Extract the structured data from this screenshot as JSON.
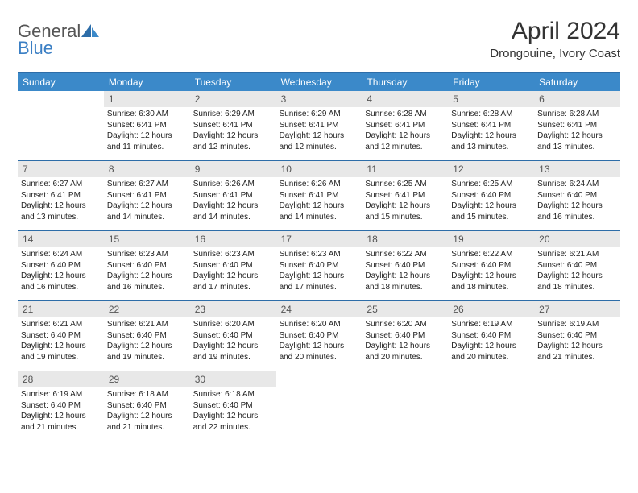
{
  "logo": {
    "text_top": "General",
    "text_bottom": "Blue"
  },
  "title": "April 2024",
  "location": "Drongouine, Ivory Coast",
  "weekdays": [
    "Sunday",
    "Monday",
    "Tuesday",
    "Wednesday",
    "Thursday",
    "Friday",
    "Saturday"
  ],
  "colors": {
    "header_bar": "#3b89c9",
    "border": "#2d6da8",
    "daynum_bg": "#e8e8e8",
    "logo_blue": "#3b7fc4"
  },
  "weeks": [
    [
      null,
      {
        "n": "1",
        "sr": "Sunrise: 6:30 AM",
        "ss": "Sunset: 6:41 PM",
        "d1": "Daylight: 12 hours",
        "d2": "and 11 minutes."
      },
      {
        "n": "2",
        "sr": "Sunrise: 6:29 AM",
        "ss": "Sunset: 6:41 PM",
        "d1": "Daylight: 12 hours",
        "d2": "and 12 minutes."
      },
      {
        "n": "3",
        "sr": "Sunrise: 6:29 AM",
        "ss": "Sunset: 6:41 PM",
        "d1": "Daylight: 12 hours",
        "d2": "and 12 minutes."
      },
      {
        "n": "4",
        "sr": "Sunrise: 6:28 AM",
        "ss": "Sunset: 6:41 PM",
        "d1": "Daylight: 12 hours",
        "d2": "and 12 minutes."
      },
      {
        "n": "5",
        "sr": "Sunrise: 6:28 AM",
        "ss": "Sunset: 6:41 PM",
        "d1": "Daylight: 12 hours",
        "d2": "and 13 minutes."
      },
      {
        "n": "6",
        "sr": "Sunrise: 6:28 AM",
        "ss": "Sunset: 6:41 PM",
        "d1": "Daylight: 12 hours",
        "d2": "and 13 minutes."
      }
    ],
    [
      {
        "n": "7",
        "sr": "Sunrise: 6:27 AM",
        "ss": "Sunset: 6:41 PM",
        "d1": "Daylight: 12 hours",
        "d2": "and 13 minutes."
      },
      {
        "n": "8",
        "sr": "Sunrise: 6:27 AM",
        "ss": "Sunset: 6:41 PM",
        "d1": "Daylight: 12 hours",
        "d2": "and 14 minutes."
      },
      {
        "n": "9",
        "sr": "Sunrise: 6:26 AM",
        "ss": "Sunset: 6:41 PM",
        "d1": "Daylight: 12 hours",
        "d2": "and 14 minutes."
      },
      {
        "n": "10",
        "sr": "Sunrise: 6:26 AM",
        "ss": "Sunset: 6:41 PM",
        "d1": "Daylight: 12 hours",
        "d2": "and 14 minutes."
      },
      {
        "n": "11",
        "sr": "Sunrise: 6:25 AM",
        "ss": "Sunset: 6:41 PM",
        "d1": "Daylight: 12 hours",
        "d2": "and 15 minutes."
      },
      {
        "n": "12",
        "sr": "Sunrise: 6:25 AM",
        "ss": "Sunset: 6:40 PM",
        "d1": "Daylight: 12 hours",
        "d2": "and 15 minutes."
      },
      {
        "n": "13",
        "sr": "Sunrise: 6:24 AM",
        "ss": "Sunset: 6:40 PM",
        "d1": "Daylight: 12 hours",
        "d2": "and 16 minutes."
      }
    ],
    [
      {
        "n": "14",
        "sr": "Sunrise: 6:24 AM",
        "ss": "Sunset: 6:40 PM",
        "d1": "Daylight: 12 hours",
        "d2": "and 16 minutes."
      },
      {
        "n": "15",
        "sr": "Sunrise: 6:23 AM",
        "ss": "Sunset: 6:40 PM",
        "d1": "Daylight: 12 hours",
        "d2": "and 16 minutes."
      },
      {
        "n": "16",
        "sr": "Sunrise: 6:23 AM",
        "ss": "Sunset: 6:40 PM",
        "d1": "Daylight: 12 hours",
        "d2": "and 17 minutes."
      },
      {
        "n": "17",
        "sr": "Sunrise: 6:23 AM",
        "ss": "Sunset: 6:40 PM",
        "d1": "Daylight: 12 hours",
        "d2": "and 17 minutes."
      },
      {
        "n": "18",
        "sr": "Sunrise: 6:22 AM",
        "ss": "Sunset: 6:40 PM",
        "d1": "Daylight: 12 hours",
        "d2": "and 18 minutes."
      },
      {
        "n": "19",
        "sr": "Sunrise: 6:22 AM",
        "ss": "Sunset: 6:40 PM",
        "d1": "Daylight: 12 hours",
        "d2": "and 18 minutes."
      },
      {
        "n": "20",
        "sr": "Sunrise: 6:21 AM",
        "ss": "Sunset: 6:40 PM",
        "d1": "Daylight: 12 hours",
        "d2": "and 18 minutes."
      }
    ],
    [
      {
        "n": "21",
        "sr": "Sunrise: 6:21 AM",
        "ss": "Sunset: 6:40 PM",
        "d1": "Daylight: 12 hours",
        "d2": "and 19 minutes."
      },
      {
        "n": "22",
        "sr": "Sunrise: 6:21 AM",
        "ss": "Sunset: 6:40 PM",
        "d1": "Daylight: 12 hours",
        "d2": "and 19 minutes."
      },
      {
        "n": "23",
        "sr": "Sunrise: 6:20 AM",
        "ss": "Sunset: 6:40 PM",
        "d1": "Daylight: 12 hours",
        "d2": "and 19 minutes."
      },
      {
        "n": "24",
        "sr": "Sunrise: 6:20 AM",
        "ss": "Sunset: 6:40 PM",
        "d1": "Daylight: 12 hours",
        "d2": "and 20 minutes."
      },
      {
        "n": "25",
        "sr": "Sunrise: 6:20 AM",
        "ss": "Sunset: 6:40 PM",
        "d1": "Daylight: 12 hours",
        "d2": "and 20 minutes."
      },
      {
        "n": "26",
        "sr": "Sunrise: 6:19 AM",
        "ss": "Sunset: 6:40 PM",
        "d1": "Daylight: 12 hours",
        "d2": "and 20 minutes."
      },
      {
        "n": "27",
        "sr": "Sunrise: 6:19 AM",
        "ss": "Sunset: 6:40 PM",
        "d1": "Daylight: 12 hours",
        "d2": "and 21 minutes."
      }
    ],
    [
      {
        "n": "28",
        "sr": "Sunrise: 6:19 AM",
        "ss": "Sunset: 6:40 PM",
        "d1": "Daylight: 12 hours",
        "d2": "and 21 minutes."
      },
      {
        "n": "29",
        "sr": "Sunrise: 6:18 AM",
        "ss": "Sunset: 6:40 PM",
        "d1": "Daylight: 12 hours",
        "d2": "and 21 minutes."
      },
      {
        "n": "30",
        "sr": "Sunrise: 6:18 AM",
        "ss": "Sunset: 6:40 PM",
        "d1": "Daylight: 12 hours",
        "d2": "and 22 minutes."
      },
      null,
      null,
      null,
      null
    ]
  ]
}
